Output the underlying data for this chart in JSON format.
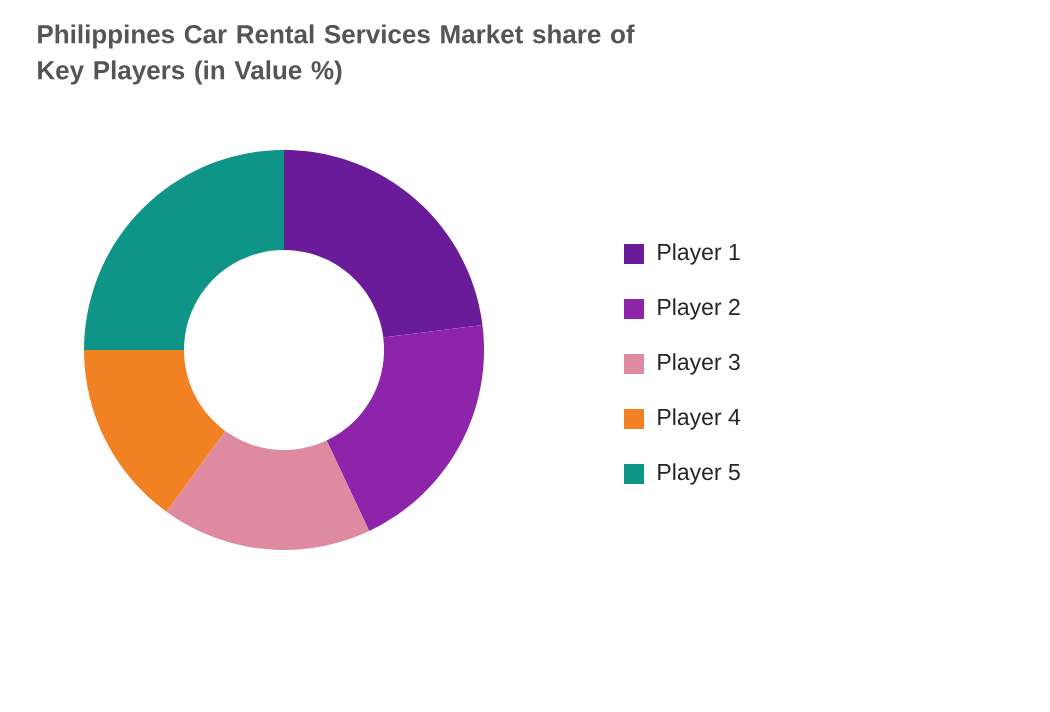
{
  "chart_data": {
    "type": "donut",
    "title": "Philippines Car Rental Services Market share of Key Players (in Value %)",
    "categories": [
      "Player 1",
      "Player 2",
      "Player 3",
      "Player 4",
      "Player 5"
    ],
    "values": [
      23,
      20,
      17,
      15,
      25
    ],
    "colors": [
      "#6a1b9a",
      "#8e24aa",
      "#de8aa0",
      "#f28123",
      "#0f9488"
    ],
    "legend": "right"
  }
}
